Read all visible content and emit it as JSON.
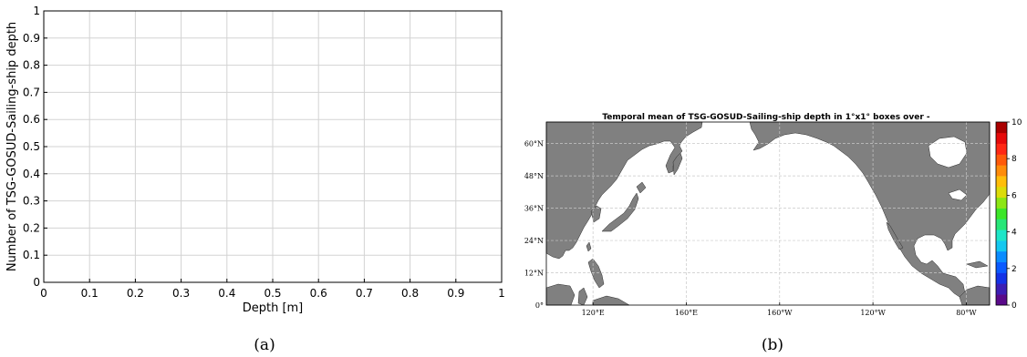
{
  "chart_data": [
    {
      "type": "bar",
      "ylabel": "Number of TSG-GOSUD-Sailing-ship depth",
      "xlabel": "Depth [m]",
      "xlim": [
        0,
        1
      ],
      "ylim": [
        0,
        1
      ],
      "xticks": [
        "0",
        "0.1",
        "0.2",
        "0.3",
        "0.4",
        "0.5",
        "0.6",
        "0.7",
        "0.8",
        "0.9",
        "1"
      ],
      "yticks": [
        "0",
        "0.1",
        "0.2",
        "0.3",
        "0.4",
        "0.5",
        "0.6",
        "0.7",
        "0.8",
        "0.9",
        "1"
      ],
      "grid": true,
      "values": [],
      "caption": "(a)"
    },
    {
      "type": "heatmap",
      "title": "Temporal mean of TSG-GOSUD-Sailing-ship depth in 1°x1° boxes over -",
      "lat_labels": [
        "0°",
        "12°N",
        "24°N",
        "36°N",
        "48°N",
        "60°N"
      ],
      "lat_values": [
        0,
        12,
        24,
        36,
        48,
        60
      ],
      "lon_labels": [
        "120°E",
        "160°E",
        "160°W",
        "120°W",
        "80°W"
      ],
      "lon_values": [
        120,
        160,
        200,
        240,
        280
      ],
      "colorbar": {
        "ticks": [
          "0",
          "2",
          "4",
          "6",
          "8",
          "10"
        ],
        "range": [
          0,
          10
        ],
        "colors": [
          "#5a0a8a",
          "#3c1eb4",
          "#1432e6",
          "#0a5aff",
          "#0a8cff",
          "#14c8f0",
          "#1ee6c8",
          "#28e678",
          "#3ce628",
          "#8ce614",
          "#dcdc0a",
          "#ffbe0a",
          "#ff8c0a",
          "#ff5a0a",
          "#ff2814",
          "#e60a0a",
          "#aa0000"
        ]
      },
      "grid": true,
      "colors": {
        "land": "#808080",
        "ocean": "#ffffff"
      },
      "caption": "(b)"
    }
  ]
}
